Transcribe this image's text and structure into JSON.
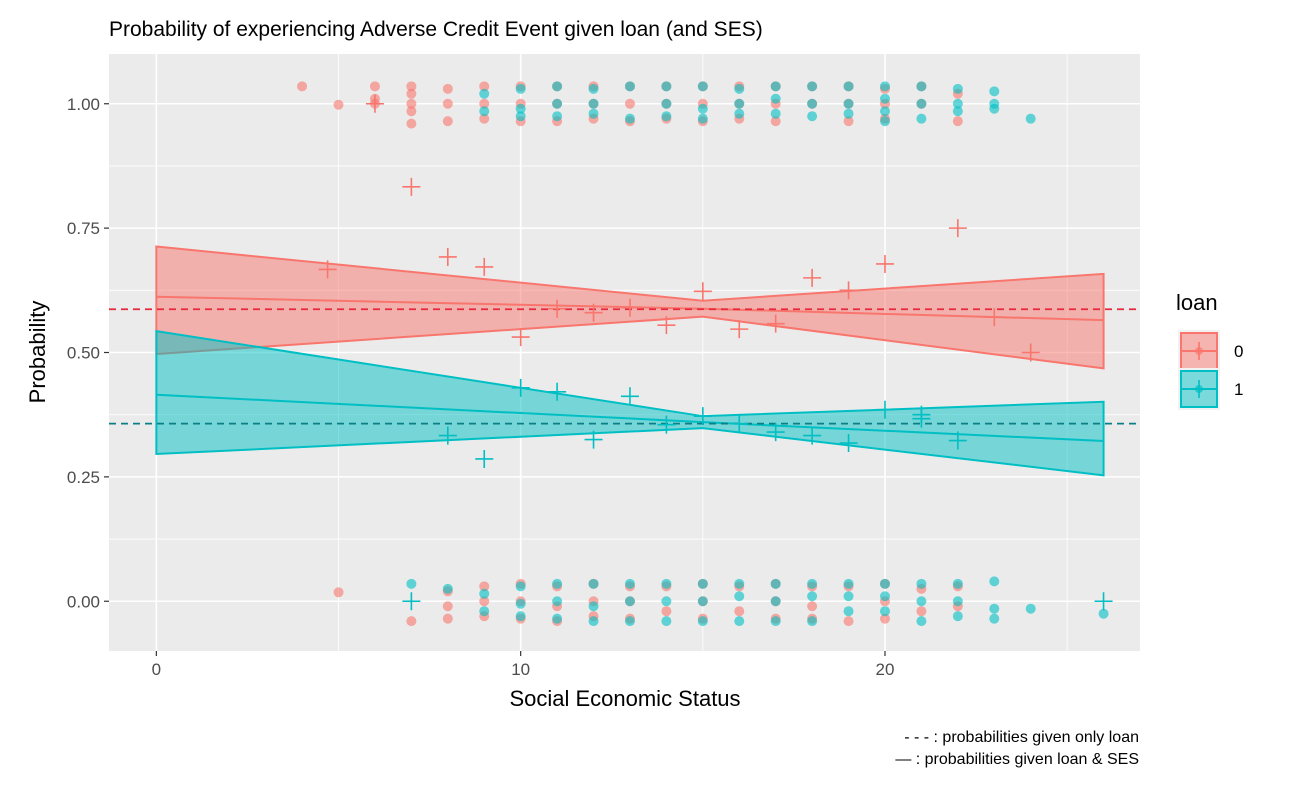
{
  "chart_data": {
    "type": "scatter",
    "title": "Probability of experiencing Adverse Credit Event given loan (and SES)",
    "xlabel": "Social Economic Status",
    "ylabel": "Probability",
    "xlim": [
      -1.3,
      27.0
    ],
    "ylim": [
      -0.1,
      1.1
    ],
    "x_ticks": [
      0,
      10,
      20
    ],
    "x_minor_ticks": [
      5,
      15,
      25
    ],
    "y_ticks": [
      0.0,
      0.25,
      0.5,
      0.75,
      1.0
    ],
    "y_tick_labels": [
      "0.00",
      "0.25",
      "0.50",
      "0.75",
      "1.00"
    ],
    "grid": true,
    "legend": {
      "title": "loan",
      "position": "right",
      "entries": [
        {
          "label": "0",
          "color": "#F8766D"
        },
        {
          "label": "1",
          "color": "#00BFC4"
        }
      ]
    },
    "colors": {
      "loan0": "#F8766D",
      "loan1": "#00BFC4",
      "hline0": "#E8283C",
      "hline1": "#0A7F86",
      "panel": "#EBEBEB",
      "grid": "#FFFFFF"
    },
    "hlines": [
      {
        "group": "0",
        "y": 0.587
      },
      {
        "group": "1",
        "y": 0.357
      }
    ],
    "ribbons": [
      {
        "group": "0",
        "x": [
          0,
          15,
          26
        ],
        "fit": [
          0.612,
          0.588,
          0.565
        ],
        "lower": [
          0.497,
          0.572,
          0.468
        ],
        "upper": [
          0.713,
          0.604,
          0.658
        ]
      },
      {
        "group": "1",
        "x": [
          0,
          15,
          26
        ],
        "fit": [
          0.415,
          0.36,
          0.322
        ],
        "lower": [
          0.296,
          0.348,
          0.253
        ],
        "upper": [
          0.543,
          0.372,
          0.401
        ]
      }
    ],
    "series": [
      {
        "name": "0",
        "empirical_means": [
          [
            4.7,
            0.667
          ],
          [
            6,
            1.0
          ],
          [
            7,
            0.833
          ],
          [
            8,
            0.692
          ],
          [
            9,
            0.672
          ],
          [
            10,
            0.531
          ],
          [
            11,
            0.588
          ],
          [
            12,
            0.58
          ],
          [
            13,
            0.59
          ],
          [
            14,
            0.555
          ],
          [
            15,
            0.623
          ],
          [
            16,
            0.547
          ],
          [
            17,
            0.558
          ],
          [
            18,
            0.65
          ],
          [
            19,
            0.625
          ],
          [
            20,
            0.678
          ],
          [
            22,
            0.75
          ],
          [
            23,
            0.571
          ],
          [
            24,
            0.5
          ]
        ],
        "points_y1": [
          [
            4,
            1.035
          ],
          [
            5,
            0.998
          ],
          [
            6,
            1.0
          ],
          [
            6,
            1.035
          ],
          [
            6,
            1.01
          ],
          [
            7,
            1.035
          ],
          [
            7,
            1.0
          ],
          [
            7,
            0.985
          ],
          [
            7,
            0.96
          ],
          [
            7,
            1.02
          ],
          [
            8,
            1.03
          ],
          [
            8,
            1.0
          ],
          [
            8,
            0.965
          ],
          [
            9,
            1.035
          ],
          [
            9,
            1.0
          ],
          [
            9,
            0.97
          ],
          [
            10,
            1.035
          ],
          [
            10,
            1.0
          ],
          [
            10,
            0.965
          ],
          [
            11,
            1.035
          ],
          [
            11,
            1.0
          ],
          [
            11,
            0.965
          ],
          [
            12,
            1.035
          ],
          [
            12,
            1.0
          ],
          [
            12,
            0.97
          ],
          [
            13,
            1.035
          ],
          [
            13,
            1.0
          ],
          [
            13,
            0.965
          ],
          [
            14,
            1.035
          ],
          [
            14,
            1.0
          ],
          [
            14,
            0.97
          ],
          [
            15,
            1.035
          ],
          [
            15,
            1.0
          ],
          [
            15,
            0.965
          ],
          [
            16,
            1.035
          ],
          [
            16,
            1.0
          ],
          [
            16,
            0.97
          ],
          [
            17,
            1.035
          ],
          [
            17,
            1.0
          ],
          [
            17,
            0.965
          ],
          [
            18,
            1.035
          ],
          [
            18,
            1.0
          ],
          [
            19,
            1.035
          ],
          [
            19,
            1.0
          ],
          [
            19,
            0.965
          ],
          [
            20,
            1.03
          ],
          [
            20,
            1.0
          ],
          [
            20,
            0.97
          ],
          [
            21,
            1.035
          ],
          [
            21,
            1.0
          ],
          [
            22,
            1.02
          ],
          [
            22,
            0.965
          ]
        ],
        "points_y0": [
          [
            5,
            0.018
          ],
          [
            7,
            -0.04
          ],
          [
            8,
            0.02
          ],
          [
            8,
            -0.01
          ],
          [
            8,
            -0.035
          ],
          [
            9,
            0.03
          ],
          [
            9,
            0.0
          ],
          [
            9,
            -0.03
          ],
          [
            10,
            0.035
          ],
          [
            10,
            0.0
          ],
          [
            10,
            -0.035
          ],
          [
            11,
            0.03
          ],
          [
            11,
            -0.01
          ],
          [
            11,
            -0.04
          ],
          [
            12,
            0.035
          ],
          [
            12,
            0.0
          ],
          [
            12,
            -0.03
          ],
          [
            13,
            0.03
          ],
          [
            13,
            0.0
          ],
          [
            13,
            -0.035
          ],
          [
            14,
            0.03
          ],
          [
            14,
            -0.02
          ],
          [
            15,
            0.035
          ],
          [
            15,
            0.0
          ],
          [
            15,
            -0.035
          ],
          [
            16,
            0.03
          ],
          [
            16,
            -0.02
          ],
          [
            17,
            0.035
          ],
          [
            17,
            0.0
          ],
          [
            17,
            -0.035
          ],
          [
            18,
            0.03
          ],
          [
            18,
            -0.01
          ],
          [
            18,
            -0.035
          ],
          [
            19,
            0.03
          ],
          [
            19,
            -0.04
          ],
          [
            20,
            0.035
          ],
          [
            20,
            0.0
          ],
          [
            20,
            -0.035
          ],
          [
            21,
            0.025
          ],
          [
            21,
            -0.02
          ],
          [
            22,
            0.03
          ],
          [
            22,
            -0.01
          ]
        ]
      },
      {
        "name": "1",
        "empirical_means": [
          [
            7,
            0.0
          ],
          [
            8,
            0.333
          ],
          [
            9,
            0.286
          ],
          [
            10,
            0.429
          ],
          [
            11,
            0.421
          ],
          [
            12,
            0.325
          ],
          [
            13,
            0.412
          ],
          [
            14,
            0.355
          ],
          [
            15,
            0.372
          ],
          [
            16,
            0.357
          ],
          [
            17,
            0.34
          ],
          [
            18,
            0.333
          ],
          [
            19,
            0.318
          ],
          [
            20,
            0.385
          ],
          [
            21,
            0.375
          ],
          [
            21,
            0.367
          ],
          [
            22,
            0.323
          ],
          [
            26,
            0.0
          ]
        ],
        "points_y1": [
          [
            9,
            1.02
          ],
          [
            9,
            0.985
          ],
          [
            10,
            1.03
          ],
          [
            10,
            0.99
          ],
          [
            10,
            0.975
          ],
          [
            11,
            1.035
          ],
          [
            11,
            1.0
          ],
          [
            11,
            0.975
          ],
          [
            12,
            1.03
          ],
          [
            12,
            1.0
          ],
          [
            12,
            0.98
          ],
          [
            13,
            1.035
          ],
          [
            13,
            0.97
          ],
          [
            14,
            1.035
          ],
          [
            14,
            1.0
          ],
          [
            14,
            0.975
          ],
          [
            15,
            1.035
          ],
          [
            15,
            0.99
          ],
          [
            15,
            0.97
          ],
          [
            16,
            1.03
          ],
          [
            16,
            1.0
          ],
          [
            16,
            0.98
          ],
          [
            17,
            1.035
          ],
          [
            17,
            1.01
          ],
          [
            17,
            0.98
          ],
          [
            18,
            1.035
          ],
          [
            18,
            1.0
          ],
          [
            18,
            0.975
          ],
          [
            19,
            1.035
          ],
          [
            19,
            1.0
          ],
          [
            19,
            0.98
          ],
          [
            20,
            1.035
          ],
          [
            20,
            1.01
          ],
          [
            20,
            0.985
          ],
          [
            20,
            0.965
          ],
          [
            21,
            1.035
          ],
          [
            21,
            1.0
          ],
          [
            21,
            0.97
          ],
          [
            22,
            1.03
          ],
          [
            22,
            1.0
          ],
          [
            22,
            0.985
          ],
          [
            23,
            1.025
          ],
          [
            23,
            1.0
          ],
          [
            23,
            0.99
          ],
          [
            24,
            0.97
          ]
        ],
        "points_y0": [
          [
            7,
            0.035
          ],
          [
            8,
            0.025
          ],
          [
            9,
            0.015
          ],
          [
            9,
            -0.02
          ],
          [
            10,
            0.03
          ],
          [
            10,
            -0.005
          ],
          [
            10,
            -0.03
          ],
          [
            11,
            0.035
          ],
          [
            11,
            0.0
          ],
          [
            11,
            -0.035
          ],
          [
            12,
            0.035
          ],
          [
            12,
            -0.01
          ],
          [
            12,
            -0.04
          ],
          [
            13,
            0.035
          ],
          [
            13,
            0.0
          ],
          [
            13,
            -0.04
          ],
          [
            14,
            0.035
          ],
          [
            14,
            0.0
          ],
          [
            14,
            -0.04
          ],
          [
            15,
            0.035
          ],
          [
            15,
            0.0
          ],
          [
            15,
            -0.04
          ],
          [
            16,
            0.035
          ],
          [
            16,
            0.01
          ],
          [
            16,
            -0.04
          ],
          [
            17,
            0.035
          ],
          [
            17,
            0.0
          ],
          [
            17,
            -0.04
          ],
          [
            18,
            0.035
          ],
          [
            18,
            0.01
          ],
          [
            18,
            -0.04
          ],
          [
            19,
            0.035
          ],
          [
            19,
            0.01
          ],
          [
            19,
            -0.02
          ],
          [
            20,
            0.035
          ],
          [
            20,
            0.01
          ],
          [
            20,
            -0.02
          ],
          [
            21,
            0.035
          ],
          [
            21,
            0.0
          ],
          [
            21,
            -0.04
          ],
          [
            22,
            0.035
          ],
          [
            22,
            0.0
          ],
          [
            22,
            -0.03
          ],
          [
            23,
            0.04
          ],
          [
            23,
            -0.015
          ],
          [
            23,
            -0.035
          ],
          [
            24,
            -0.015
          ],
          [
            26,
            -0.025
          ]
        ]
      }
    ],
    "captions": [
      "- - - : probabilities given only loan",
      "— : probabilities given loan & SES"
    ]
  }
}
